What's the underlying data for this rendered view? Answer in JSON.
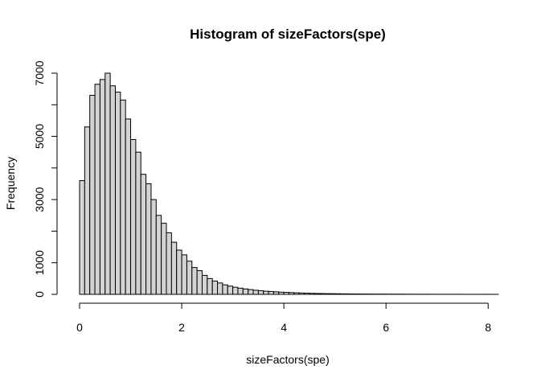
{
  "chart_data": {
    "type": "bar",
    "title": "Histogram of sizeFactors(spe)",
    "xlabel": "sizeFactors(spe)",
    "ylabel": "Frequency",
    "xlim": [
      0,
      8.2
    ],
    "ylim": [
      0,
      7000
    ],
    "x_ticks": [
      0,
      2,
      4,
      6,
      8
    ],
    "y_ticks": [
      0,
      1000,
      3000,
      5000,
      7000
    ],
    "grid": false,
    "bar_fill": "#d3d3d3",
    "bar_stroke": "#000000",
    "bin_width": 0.1,
    "bins_start": 0,
    "values": [
      3600,
      5300,
      6300,
      6650,
      6800,
      7000,
      6600,
      6400,
      6150,
      5550,
      4900,
      4500,
      3800,
      3500,
      3000,
      2500,
      2250,
      1950,
      1650,
      1400,
      1250,
      1050,
      850,
      750,
      600,
      500,
      420,
      360,
      300,
      260,
      225,
      195,
      170,
      150,
      130,
      115,
      100,
      90,
      80,
      70,
      62,
      55,
      48,
      42,
      37,
      32,
      28,
      25,
      22,
      20,
      18,
      16,
      14,
      12,
      11,
      10,
      9,
      8,
      7,
      7,
      6,
      6,
      5,
      5,
      4,
      4,
      3,
      3,
      3,
      2,
      2,
      2,
      2,
      2,
      2,
      1,
      1,
      1,
      1,
      1,
      1,
      1
    ]
  }
}
